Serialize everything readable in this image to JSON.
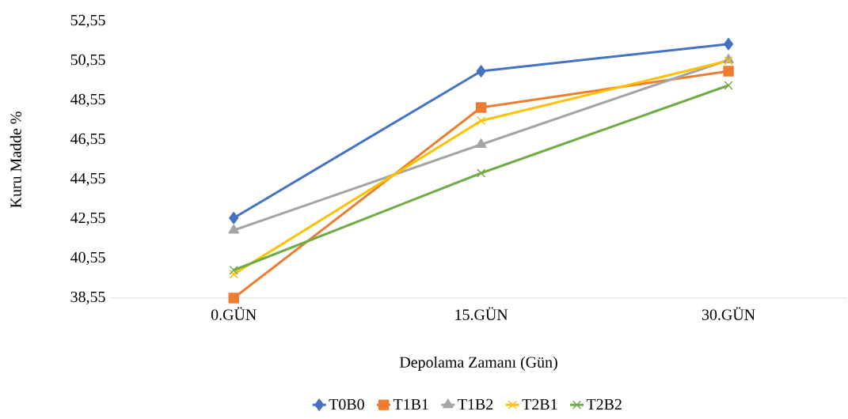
{
  "chart_data": {
    "type": "line",
    "xlabel": "Depolama Zamanı (Gün)",
    "ylabel": "Kuru Madde %",
    "categories": [
      "0.GÜN",
      "15.GÜN",
      "30.GÜN"
    ],
    "ylim": [
      38.55,
      52.55
    ],
    "yticks": [
      {
        "value": 38.55,
        "label": "38,55"
      },
      {
        "value": 40.55,
        "label": "40,55"
      },
      {
        "value": 42.55,
        "label": "42,55"
      },
      {
        "value": 44.55,
        "label": "44,55"
      },
      {
        "value": 46.55,
        "label": "46,55"
      },
      {
        "value": 48.55,
        "label": "48,55"
      },
      {
        "value": 50.55,
        "label": "50,55"
      },
      {
        "value": 52.55,
        "label": "52,55"
      }
    ],
    "legend": "bottom",
    "line_style": "solid",
    "series": [
      {
        "name": "T0B0",
        "color": "#4472c4",
        "marker": "diamond",
        "values": [
          42.6,
          50.03,
          51.4
        ]
      },
      {
        "name": "T1B1",
        "color": "#ed7d31",
        "marker": "square",
        "values": [
          38.55,
          48.19,
          50.03
        ]
      },
      {
        "name": "T1B2",
        "color": "#a5a5a5",
        "marker": "triangle",
        "values": [
          41.98,
          46.32,
          50.6
        ]
      },
      {
        "name": "T2B1",
        "color": "#ffc000",
        "marker": "cross",
        "values": [
          39.76,
          47.52,
          50.56
        ]
      },
      {
        "name": "T2B2",
        "color": "#70ad47",
        "marker": "cross",
        "values": [
          39.96,
          44.87,
          49.31
        ]
      }
    ]
  }
}
